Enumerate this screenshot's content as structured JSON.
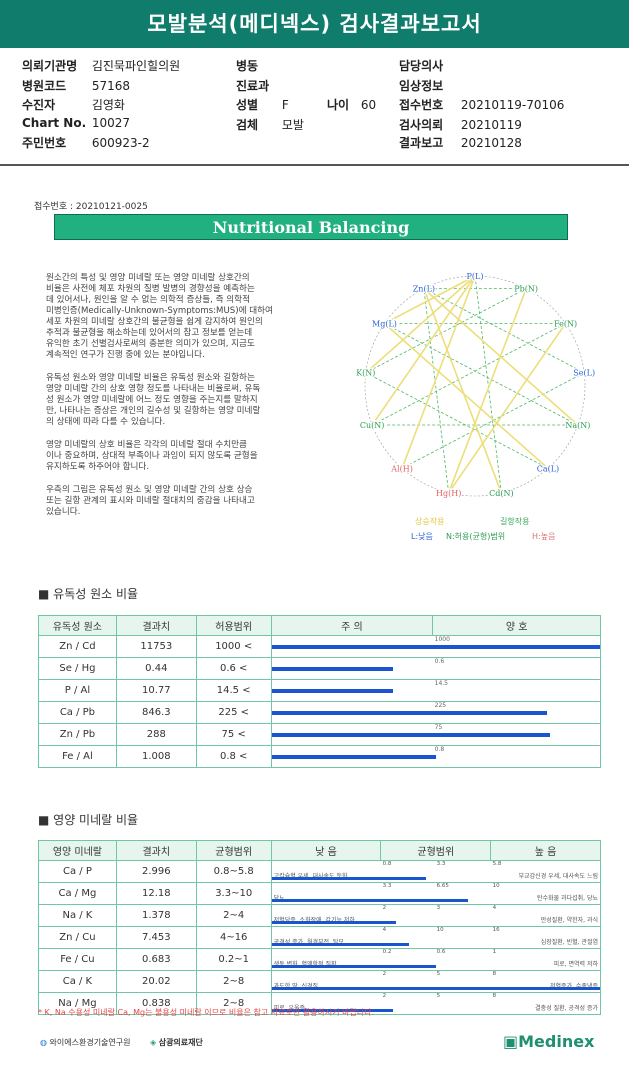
{
  "title": "모발분석(메디넥스) 검사결과보고서",
  "info": {
    "r1": [
      "의뢰기관명",
      "김진묵파인힐의원",
      "병동",
      "",
      "담당의사",
      ""
    ],
    "r2": [
      "병원코드",
      "57168",
      "진료과",
      "",
      "임상정보",
      ""
    ],
    "r3": [
      "수진자",
      "김영화",
      "성별",
      "F",
      "나이",
      "60",
      "접수번호",
      "20210119-70106"
    ],
    "r4": [
      "Chart No.",
      "10027",
      "검체",
      "모발",
      "검사의뢰",
      "20210119"
    ],
    "r5": [
      "주민번호",
      "600923-2",
      "결과보고",
      "20210128"
    ]
  },
  "refno": "접수번호 : 20210121-0025",
  "banner": "Nutritional Balancing",
  "paragraphs": [
    "원소간의 특성 및 영양 미네랄 또는 영양 미네랄 상호간의\n비율은 사전에 체포 차원의 질병 발병의 경향성을 예측하는\n데 있어서나, 원인을 알 수 없는 의학적 증상들, 즉 의학적\n미병인증(Medically-Unknown-Symptoms:MUS)에 대하여\n세포 차원의 미네랄 상호간의 불균형을 쉽게 감지하여 원인의\n추적과 불균형을 해소하는데 있어서의 참고 정보를 얻는데\n유익한 초기 선별검사로써의 충분한 의미가 있으며, 지금도\n계속적인 연구가 진행 중에 있는 분야입니다.",
    "유독성 원소와 영양 미네랄 비율은 유독성 원소와 길항하는\n영양 미네랄 간의 상호 영향 정도를 나타내는 비율로써, 유독\n성 원소가 영양 미네랄에 어느 정도 영향을 주는지를 말하지\n만, 나타나는 증상은 개인의 길수성 및 길항하는 영양 미네랄\n의 상태에 따라 다를 수 있습니다.",
    "영양 미네랄의 상호 비율은 각각의 미네랄 절대 수치만큼\n이나 중요하며, 상대적 부족이나 과잉이 되지 않도록 균형을\n유지하도록 하주어야 합니다.",
    "우측의 그림은 유독성 원소 및 영양 미네랄 간의 상호 상승\n또는 길항 관계의 표시와 미네랄 절대치의 중감을 나타내고\n있습니다."
  ],
  "wheel": {
    "labels": [
      "P(L)",
      "Pb(N)",
      "Fe(N)",
      "Se(L)",
      "Na(N)",
      "Ca(L)",
      "Cd(N)",
      "Hg(H)",
      "Al(H)",
      "Cu(N)",
      "K(N)",
      "Mg(L)",
      "Zn(L)"
    ],
    "legend": [
      "상승작용",
      "길항작용",
      "L:낮음",
      "N:허용(균형)범위",
      "H:높음"
    ]
  },
  "toxic": {
    "section": "■ 유독성 원소 비율",
    "headers": [
      "유독성 원소",
      "결과치",
      "허용범위",
      "주   의",
      "양   호"
    ],
    "rows": [
      {
        "name": "Zn / Cd",
        "value": "11753",
        "range": "1000 <",
        "tick": "1000",
        "level": 1.0
      },
      {
        "name": "Se / Hg",
        "value": "0.44",
        "range": "0.6 <",
        "tick": "0.6",
        "level": 0.37
      },
      {
        "name": "P / Al",
        "value": "10.77",
        "range": "14.5 <",
        "tick": "14.5",
        "level": 0.37
      },
      {
        "name": "Ca / Pb",
        "value": "846.3",
        "range": "225 <",
        "tick": "225",
        "level": 0.84
      },
      {
        "name": "Zn / Pb",
        "value": "288",
        "range": "75 <",
        "tick": "75",
        "level": 0.85
      },
      {
        "name": "Fe / Al",
        "value": "1.008",
        "range": "0.8 <",
        "tick": "0.8",
        "level": 0.5
      }
    ]
  },
  "nutri": {
    "section": "■ 영양 미네랄 비율",
    "headers": [
      "영양 미네랄",
      "결과치",
      "균형범위",
      "낮   음",
      "균형범위",
      "높   음"
    ],
    "rows": [
      {
        "name": "Ca / P",
        "value": "2.996",
        "range": "0.8~5.8",
        "lo": "0.8",
        "mid": "3.3",
        "hi": "5.8",
        "low_text": "고칼슘혈 우세, 대사속도 둔화",
        "high_text": "부교감신경 우세, 대사속도 느림",
        "level": 0.47
      },
      {
        "name": "Ca / Mg",
        "value": "12.18",
        "range": "3.3~10",
        "lo": "3.3",
        "mid": "6.65",
        "hi": "10",
        "low_text": "당뇨",
        "high_text": "탄수화물 과다섭취, 당뇨",
        "level": 0.6
      },
      {
        "name": "Na / K",
        "value": "1.378",
        "range": "2~4",
        "lo": "2",
        "mid": "3",
        "hi": "4",
        "low_text": "저혈당증, 소화장애, 갑기능 저하",
        "high_text": "만성질환, 약한자, 과식",
        "level": 0.38
      },
      {
        "name": "Zn / Cu",
        "value": "7.453",
        "range": "4~16",
        "lo": "4",
        "mid": "10",
        "hi": "16",
        "low_text": "공격성 증가, 월경부전, 탈모",
        "high_text": "심장질환, 빈혈, 관절염",
        "level": 0.42
      },
      {
        "name": "Fe / Cu",
        "value": "0.683",
        "range": "0.2~1",
        "lo": "0.2",
        "mid": "0.6",
        "hi": "1",
        "low_text": "생동 변화, 혈액학적 질환",
        "high_text": "피로, 면역력 저하",
        "level": 0.5
      },
      {
        "name": "Ca / K",
        "value": "20.02",
        "range": "2~8",
        "lo": "2",
        "mid": "5",
        "hi": "8",
        "low_text": "과도한 땀, 신경질",
        "high_text": "저혈증가, 수족냉증",
        "level": 1.0
      },
      {
        "name": "Na / Mg",
        "value": "0.838",
        "range": "2~8",
        "lo": "2",
        "mid": "5",
        "hi": "8",
        "low_text": "피로, 우울증",
        "high_text": "결충성 질환, 공격성 증가",
        "level": 0.37
      }
    ]
  },
  "note": "* K, Na 수용성 미네랄 Ca, Mg는 불용성 미네랄 이므로 비율은 참고 자료로만 활용하시기 바랍니다.",
  "footer": {
    "org1": "와이에스환경기술연구원",
    "org2": "삼광의료재단",
    "brand": "Medinex"
  },
  "colors": {
    "header": "#0f7c6c",
    "banner": "#21b07f",
    "bar": "#1a55d0",
    "grid": "#6fc7a4"
  }
}
